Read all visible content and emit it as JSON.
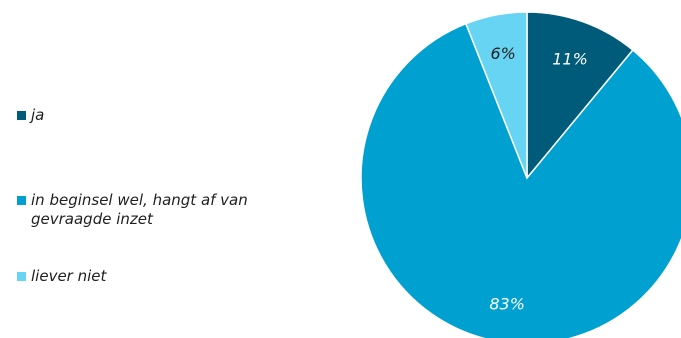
{
  "chart_data": {
    "type": "pie",
    "categories": [
      "ja",
      "in beginsel wel, hangt af van gevraagde inzet",
      "liever niet"
    ],
    "values": [
      11,
      83,
      6
    ],
    "value_labels": [
      "11%",
      "83%",
      "6%"
    ],
    "colors": [
      "#005a7a",
      "#00a0d1",
      "#66d4f2"
    ],
    "label_colors": [
      "#ffffff",
      "#ffffff",
      "#1f1f1f"
    ],
    "title": "",
    "legend_position": "left"
  }
}
